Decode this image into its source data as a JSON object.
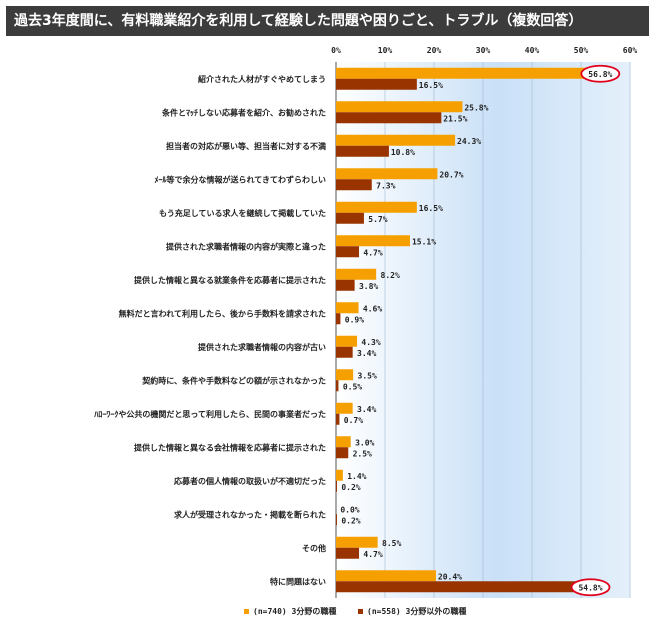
{
  "title": "過去3年度間に、有料職業紹介を利用して経験した問題や困りごと、トラブル（複数回答）",
  "chart_data": {
    "type": "bar",
    "orientation": "horizontal",
    "xlim": [
      0,
      60
    ],
    "ticks": [
      "0%",
      "10%",
      "20%",
      "30%",
      "40%",
      "50%",
      "60%"
    ],
    "categories": [
      "紹介された人材がすぐやめてしまう",
      "条件とﾏｯﾁしない応募者を紹介、お勧めされた",
      "担当者の対応が悪い等、担当者に対する不満",
      "ﾒｰﾙ等で余分な情報が送られてきてわずらわしい",
      "もう充足している求人を継続して掲載していた",
      "提供された求職者情報の内容が実際と違った",
      "提供した情報と異なる就業条件を応募者に提示された",
      "無料だと言われて利用したら、後から手数料を請求された",
      "提供された求職者情報の内容が古い",
      "契約時に、条件や手数料などの額が示されなかった",
      "ﾊﾛｰﾜｰｸや公共の機関だと思って利用したら、民間の事業者だった",
      "提供した情報と異なる会社情報を応募者に提示された",
      "応募者の個人情報の取扱いが不適切だった",
      "求人が受理されなかった・掲載を断られた",
      "その他",
      "特に問題はない"
    ],
    "series": [
      {
        "name": "(n=740) 3分野の職種",
        "color": "#F5A000",
        "values": [
          56.8,
          25.8,
          24.3,
          20.7,
          16.5,
          15.1,
          8.2,
          4.6,
          4.3,
          3.5,
          3.4,
          3.0,
          1.4,
          0.0,
          8.5,
          20.4
        ],
        "labels": [
          "56.8%",
          "25.8%",
          "24.3%",
          "20.7%",
          "16.5%",
          "15.1%",
          "8.2%",
          "4.6%",
          "4.3%",
          "3.5%",
          "3.4%",
          "3.0%",
          "1.4%",
          "0.0%",
          "8.5%",
          "20.4%"
        ]
      },
      {
        "name": "(n=558) 3分野以外の職種",
        "color": "#993300",
        "values": [
          16.5,
          21.5,
          10.8,
          7.3,
          5.7,
          4.7,
          3.8,
          0.9,
          3.4,
          0.5,
          0.7,
          2.5,
          0.2,
          0.2,
          4.7,
          54.8
        ],
        "labels": [
          "16.5%",
          "21.5%",
          "10.8%",
          "7.3%",
          "5.7%",
          "4.7%",
          "3.8%",
          "0.9%",
          "3.4%",
          "0.5%",
          "0.7%",
          "2.5%",
          "0.2%",
          "0.2%",
          "4.7%",
          "54.8%"
        ]
      }
    ],
    "highlighted": [
      {
        "series": 0,
        "index": 0
      },
      {
        "series": 1,
        "index": 15
      }
    ],
    "highlight_color": "#E0001B",
    "grid": true,
    "legend": "bottom"
  }
}
